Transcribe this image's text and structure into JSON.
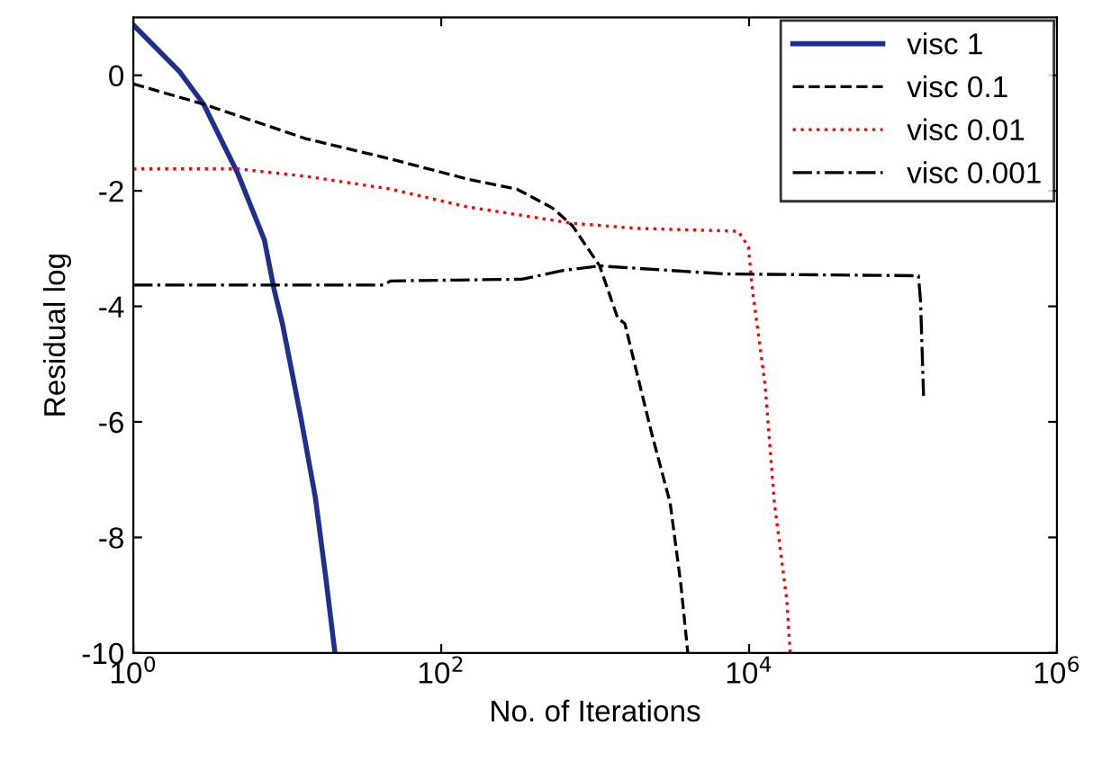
{
  "chart_data": {
    "type": "line",
    "xlabel": "No. of Iterations",
    "ylabel": "Residual log",
    "log": "x",
    "xlim": [
      1,
      1000000
    ],
    "ylim": [
      -10,
      1
    ],
    "xticks": [
      {
        "value": 1,
        "label": "10$^{0}$"
      },
      {
        "value": 100,
        "label": "10$^{2}$"
      },
      {
        "value": 10000,
        "label": "10$^{4}$"
      },
      {
        "value": 1000000,
        "label": "10$^{6}$"
      }
    ],
    "yticks": [
      -10,
      -8,
      -6,
      -4,
      -2,
      0
    ],
    "grid": false,
    "legend": "top right",
    "marker": "none",
    "series": [
      {
        "name": "visc 1",
        "color": "#1f2f8f",
        "line_style": "solid",
        "x": [
          1,
          2.0,
          2.86,
          4.77,
          7.1,
          8.2,
          9.3,
          12.2,
          15.2,
          17.8,
          20.4
        ],
        "values": [
          0.87,
          0.06,
          -0.5,
          -1.7,
          -2.85,
          -3.7,
          -4.3,
          -5.9,
          -7.3,
          -8.7,
          -10
        ]
      },
      {
        "name": "visc 0.1",
        "color": "#000000",
        "line_style": "dashed",
        "x": [
          1,
          2.86,
          13.3,
          47,
          150,
          310,
          530,
          710,
          1070,
          1400,
          1560,
          2330,
          3070,
          3600,
          4000
        ],
        "values": [
          -0.15,
          -0.5,
          -1.1,
          -1.45,
          -1.8,
          -1.97,
          -2.3,
          -2.6,
          -3.3,
          -4.2,
          -4.3,
          -6.2,
          -7.4,
          -8.8,
          -10
        ]
      },
      {
        "name": "visc 0.01",
        "color": "#ff0000",
        "line_style": "dotted",
        "x": [
          1,
          4.77,
          13.3,
          47,
          150,
          700,
          1850,
          8500,
          9900,
          10500,
          12700,
          14600,
          17600,
          18500
        ],
        "values": [
          -1.62,
          -1.62,
          -1.75,
          -1.97,
          -2.28,
          -2.56,
          -2.65,
          -2.7,
          -2.97,
          -3.7,
          -5.35,
          -7.4,
          -9.1,
          -10
        ]
      },
      {
        "name": "visc 0.001",
        "color": "#000000",
        "line_style": "dashdot",
        "x": [
          1,
          42,
          47,
          335,
          620,
          1070,
          7000,
          126000,
          130000,
          136000
        ],
        "values": [
          -3.63,
          -3.63,
          -3.56,
          -3.53,
          -3.38,
          -3.3,
          -3.44,
          -3.47,
          -3.9,
          -5.55
        ]
      }
    ]
  }
}
